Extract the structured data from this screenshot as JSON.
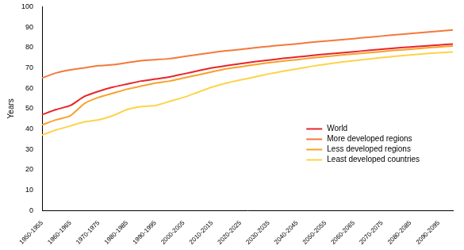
{
  "chart_data": {
    "type": "line",
    "y_label": "Years",
    "categories": [
      "1950-1955",
      null,
      "1960-1965",
      null,
      "1970-1975",
      null,
      "1980-1985",
      null,
      "1990-1995",
      null,
      "2000-2005",
      null,
      "2010-2015",
      null,
      "2020-2025",
      null,
      "2030-2035",
      null,
      "2040-2045",
      null,
      "2050-2055",
      null,
      "2060-2065",
      null,
      "2070-2075",
      null,
      "2080-2085",
      null,
      "2090-2095",
      null
    ],
    "ylim": [
      0,
      100
    ],
    "yticks": [
      0,
      10,
      20,
      30,
      40,
      50,
      60,
      70,
      80,
      90,
      100
    ],
    "grid": false,
    "legend": "lower right",
    "series": [
      {
        "name": "World",
        "color": "#e8252a",
        "values": [
          47,
          49.5,
          51.5,
          56,
          58.5,
          60.5,
          62,
          63.5,
          64.5,
          65.5,
          67,
          68.5,
          70,
          71,
          72,
          73,
          73.8,
          74.6,
          75.3,
          76,
          76.7,
          77.3,
          77.9,
          78.5,
          79.1,
          79.7,
          80.2,
          80.7,
          81.2,
          81.7
        ]
      },
      {
        "name": "More developed regions",
        "color": "#f4793b",
        "values": [
          65,
          67.5,
          69,
          70,
          71,
          71.5,
          72.5,
          73.5,
          74,
          74.5,
          75.5,
          76.5,
          77.5,
          78.3,
          79,
          79.8,
          80.5,
          81.2,
          81.8,
          82.5,
          83.1,
          83.7,
          84.3,
          85,
          85.6,
          86.2,
          86.8,
          87.4,
          88,
          88.6
        ]
      },
      {
        "name": "Less developed regions",
        "color": "#f7a12a",
        "values": [
          42,
          44.5,
          46.5,
          52.5,
          55.5,
          57.5,
          59.5,
          61,
          62.5,
          63.5,
          65,
          66.5,
          68,
          69.5,
          70.5,
          71.5,
          72.5,
          73.3,
          74,
          74.8,
          75.5,
          76.2,
          76.8,
          77.4,
          78,
          78.6,
          79.1,
          79.7,
          80.2,
          80.7
        ]
      },
      {
        "name": "Least developed countries",
        "color": "#fdd34a",
        "values": [
          37,
          39.5,
          41.5,
          43.5,
          44.5,
          46.5,
          49.5,
          51,
          51.5,
          53.5,
          55.5,
          58,
          60.5,
          62.5,
          64,
          65.5,
          67,
          68.3,
          69.5,
          70.7,
          71.7,
          72.7,
          73.5,
          74.3,
          75,
          75.7,
          76.3,
          76.9,
          77.4,
          77.8
        ]
      }
    ]
  }
}
